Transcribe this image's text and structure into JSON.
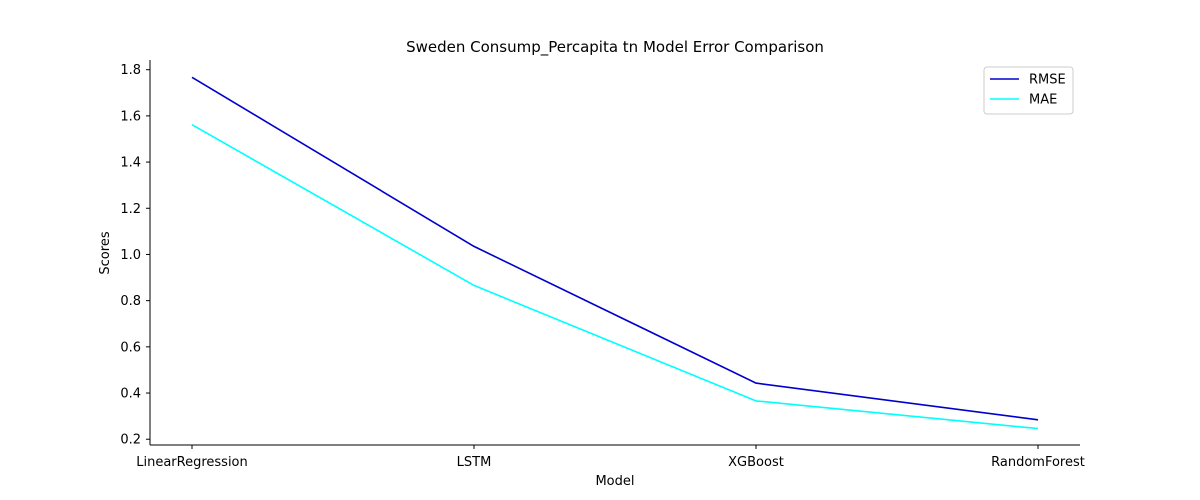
{
  "chart_data": {
    "type": "line",
    "title": "Sweden Consump_Percapita tn Model Error Comparison",
    "xlabel": "Model",
    "ylabel": "Scores",
    "categories": [
      "LinearRegression",
      "LSTM",
      "XGBoost",
      "RandomForest"
    ],
    "series": [
      {
        "name": "RMSE",
        "color": "#0000cd",
        "values": [
          1.767,
          1.035,
          0.443,
          0.284
        ]
      },
      {
        "name": "MAE",
        "color": "#00ffff",
        "values": [
          1.562,
          0.866,
          0.366,
          0.246
        ]
      }
    ],
    "ylim": [
      0.175,
      1.842
    ],
    "yticks": [
      0.2,
      0.4,
      0.6,
      0.8,
      1.0,
      1.2,
      1.4,
      1.6,
      1.8
    ],
    "ytick_labels": [
      "0.2",
      "0.4",
      "0.6",
      "0.8",
      "1.0",
      "1.2",
      "1.4",
      "1.6",
      "1.8"
    ],
    "legend_position": "top-right",
    "grid": false
  }
}
